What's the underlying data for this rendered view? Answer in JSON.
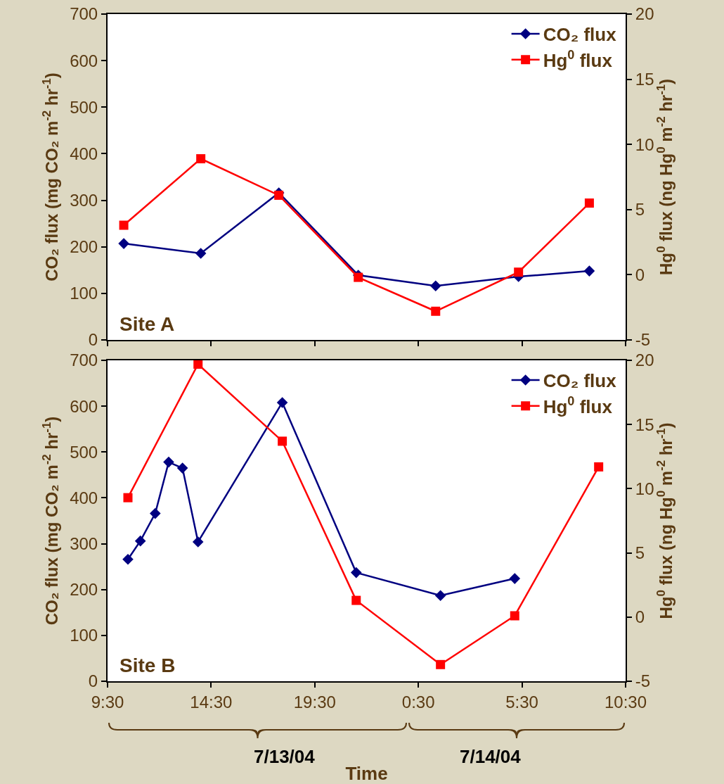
{
  "chart_data": [
    {
      "type": "line",
      "annotations": [
        "Site A"
      ],
      "ylabel": "CO₂ flux (mg CO₂ m$^{-2}$ hr$^{-1}$)",
      "y2label": "Hg$^{0}$ flux (ng Hg$^{0}$ m$^{-2}$ hr$^{-1}$)",
      "xlim": [
        "--07-13T09:30",
        "--07-14T10:30"
      ],
      "xticks": [
        {
          "value": "--07-13T09:30",
          "label": "9:30"
        },
        {
          "value": "--07-13T14:30",
          "label": "14:30"
        },
        {
          "value": "--07-13T19:30",
          "label": "19:30"
        },
        {
          "value": "--07-14T00:30",
          "label": "0:30"
        },
        {
          "value": "--07-14T05:30",
          "label": "5:30"
        },
        {
          "value": "--07-14T10:30",
          "label": "10:30"
        }
      ],
      "ylim": [
        0,
        700
      ],
      "yticks": [
        0,
        100,
        200,
        300,
        400,
        500,
        600,
        700
      ],
      "y2lim": [
        -5,
        20
      ],
      "y2ticks": [
        -5,
        0,
        5,
        10,
        15,
        20
      ],
      "tick_labels": "y",
      "grid": false,
      "legend": "top right",
      "line_style": "solid",
      "series": [
        {
          "name": "CO₂ flux",
          "color": "#000080",
          "marker": "diamond",
          "x": [
            "--07-13T10:17",
            "--07-13T14:00",
            "--07-13T17:46",
            "--07-13T21:36",
            "--07-14T01:20",
            "--07-14T05:20",
            "--07-14T08:45"
          ],
          "values": [
            207,
            186,
            316,
            139,
            116,
            136,
            148
          ]
        },
        {
          "name": "Hg$^{0}$ flux",
          "color": "#ff0000",
          "marker": "square",
          "axis": "y2",
          "x": [
            "--07-13T10:17",
            "--07-13T14:00",
            "--07-13T17:46",
            "--07-13T21:36",
            "--07-14T01:20",
            "--07-14T05:20",
            "--07-14T08:45"
          ],
          "values": [
            3.8,
            8.9,
            6.1,
            -0.2,
            -2.8,
            0.2,
            5.5
          ]
        }
      ]
    },
    {
      "type": "line",
      "annotations": [
        "Site B",
        "7/13/04",
        "7/14/04"
      ],
      "xlabel": "Time",
      "ylabel": "CO₂ flux (mg CO₂ m$^{-2}$ hr$^{-1}$)",
      "y2label": "Hg$^{0}$ flux (ng Hg$^{0}$ m$^{-2}$ hr$^{-1}$)",
      "xlim": [
        "--07-13T09:30",
        "--07-14T10:30"
      ],
      "xticks": [
        {
          "value": "--07-13T09:30",
          "label": "9:30"
        },
        {
          "value": "--07-13T14:30",
          "label": "14:30"
        },
        {
          "value": "--07-13T19:30",
          "label": "19:30"
        },
        {
          "value": "--07-14T00:30",
          "label": "0:30"
        },
        {
          "value": "--07-14T05:30",
          "label": "5:30"
        },
        {
          "value": "--07-14T10:30",
          "label": "10:30"
        }
      ],
      "ylim": [
        0,
        700
      ],
      "yticks": [
        0,
        100,
        200,
        300,
        400,
        500,
        600,
        700
      ],
      "y2lim": [
        -5,
        20
      ],
      "y2ticks": [
        -5,
        0,
        5,
        10,
        15,
        20
      ],
      "grid": false,
      "legend": "top right",
      "line_style": "solid",
      "series": [
        {
          "name": "CO₂ flux",
          "color": "#000080",
          "marker": "diamond",
          "x": [
            "--07-13T10:29",
            "--07-13T11:05",
            "--07-13T11:48",
            "--07-13T12:27",
            "--07-13T13:07",
            "--07-13T13:52",
            "--07-13T17:56",
            "--07-13T21:30",
            "--07-14T01:34",
            "--07-14T05:09"
          ],
          "values": [
            266,
            306,
            366,
            478,
            465,
            304,
            608,
            237,
            187,
            224
          ]
        },
        {
          "name": "Hg$^{0}$ flux",
          "color": "#ff0000",
          "marker": "square",
          "axis": "y2",
          "x": [
            "--07-13T10:29",
            "--07-13T13:52",
            "--07-13T17:56",
            "--07-13T21:30",
            "--07-14T01:34",
            "--07-14T05:09",
            "--07-14T09:12"
          ],
          "values": [
            9.3,
            19.7,
            13.7,
            1.3,
            -3.7,
            0.1,
            11.7
          ]
        }
      ]
    }
  ]
}
